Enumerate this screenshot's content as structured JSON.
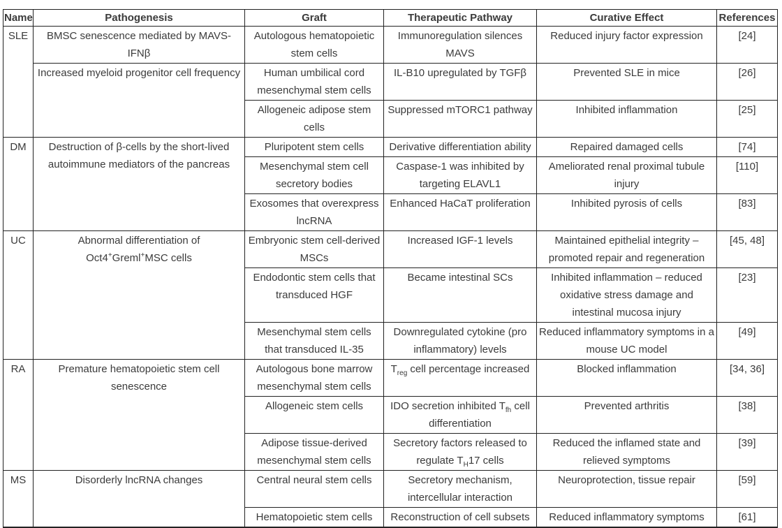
{
  "table": {
    "headers": [
      "Name",
      "Pathogenesis",
      "Graft",
      "Therapeutic Pathway",
      "Curative Effect",
      "References"
    ],
    "groups": [
      {
        "name": "SLE",
        "rows": [
          {
            "pathogenesis": "BMSC senescence mediated by MAVS-IFNβ",
            "graft": "Autologous hematopoietic stem cells",
            "pathway": "Immunoregulation silences MAVS",
            "effect": "Reduced injury factor expression",
            "ref": "[24]"
          },
          {
            "pathogenesis": "Increased myeloid progenitor cell frequency",
            "graft": "Human umbilical cord mesenchymal stem cells",
            "pathway": "IL-B10 upregulated by TGFβ",
            "effect": "Prevented SLE in mice",
            "ref": "[26]"
          },
          {
            "graft": "Allogeneic adipose stem cells",
            "pathway": "Suppressed mTORC1 pathway",
            "effect": "Inhibited inflammation",
            "ref": "[25]"
          }
        ]
      },
      {
        "name": "DM",
        "pathogenesis": "Destruction of β-cells by the short-lived autoimmune mediators of the pancreas",
        "rows": [
          {
            "graft": "Pluripotent stem cells",
            "pathway": "Derivative differentiation ability",
            "effect": "Repaired damaged cells",
            "ref": "[74]"
          },
          {
            "graft": "Mesenchymal stem cell secretory bodies",
            "pathway": "Caspase-1 was inhibited by targeting ELAVL1",
            "effect": "Ameliorated renal proximal tubule injury",
            "ref": "[110]"
          },
          {
            "graft": "Exosomes that overexpress lncRNA",
            "pathway": "Enhanced HaCaT proliferation",
            "effect": "Inhibited pyrosis of cells",
            "ref": "[83]"
          }
        ]
      },
      {
        "name": "UC",
        "pathogenesis": [
          [
            "t",
            "Abnormal differentiation of Oct4"
          ],
          [
            "sup",
            "+"
          ],
          [
            "t",
            "Greml"
          ],
          [
            "sup",
            "+"
          ],
          [
            "t",
            "MSC cells"
          ]
        ],
        "rows": [
          {
            "graft": "Embryonic stem cell-derived MSCs",
            "pathway": "Increased IGF-1 levels",
            "effect": "Maintained epithelial integrity – promoted repair and regeneration",
            "ref": "[45, 48]"
          },
          {
            "graft": "Endodontic stem cells that transduced HGF",
            "pathway": "Became intestinal SCs",
            "effect": "Inhibited inflammation – reduced oxidative stress damage and intestinal mucosa injury",
            "ref": "[23]"
          },
          {
            "graft": "Mesenchymal stem cells that transduced IL-35",
            "pathway": "Downregulated cytokine (pro inflammatory) levels",
            "effect": "Reduced inflammatory symptoms in a mouse UC model",
            "ref": "[49]"
          }
        ]
      },
      {
        "name": "RA",
        "pathogenesis": "Premature hematopoietic stem cell senescence",
        "rows": [
          {
            "graft": "Autologous bone marrow mesenchymal stem cells",
            "pathway": [
              [
                "t",
                "T"
              ],
              [
                "sub",
                "reg"
              ],
              [
                "t",
                " cell percentage increased"
              ]
            ],
            "effect": "Blocked inflammation",
            "ref": "[34, 36]"
          },
          {
            "graft": "Allogeneic stem cells",
            "pathway": [
              [
                "t",
                "IDO secretion inhibited T"
              ],
              [
                "sub",
                "fh"
              ],
              [
                "t",
                " cell differentiation"
              ]
            ],
            "effect": "Prevented arthritis",
            "ref": "[38]"
          },
          {
            "graft": "Adipose tissue-derived mesenchymal stem cells",
            "pathway": [
              [
                "t",
                "Secretory factors released to regulate T"
              ],
              [
                "sub",
                "H"
              ],
              [
                "t",
                "17 cells"
              ]
            ],
            "effect": "Reduced the inflamed state and relieved symptoms",
            "ref": "[39]"
          }
        ]
      },
      {
        "name": "MS",
        "pathogenesis": "Disorderly lncRNA changes",
        "rows": [
          {
            "graft": "Central neural stem cells",
            "pathway": "Secretory mechanism, intercellular interaction",
            "effect": "Neuroprotection, tissue repair",
            "ref": "[59]"
          },
          {
            "graft": "Hematopoietic stem cells",
            "pathway": "Reconstruction of cell subsets",
            "effect": "Reduced inflammatory symptoms",
            "ref": "[61]"
          }
        ]
      }
    ]
  }
}
